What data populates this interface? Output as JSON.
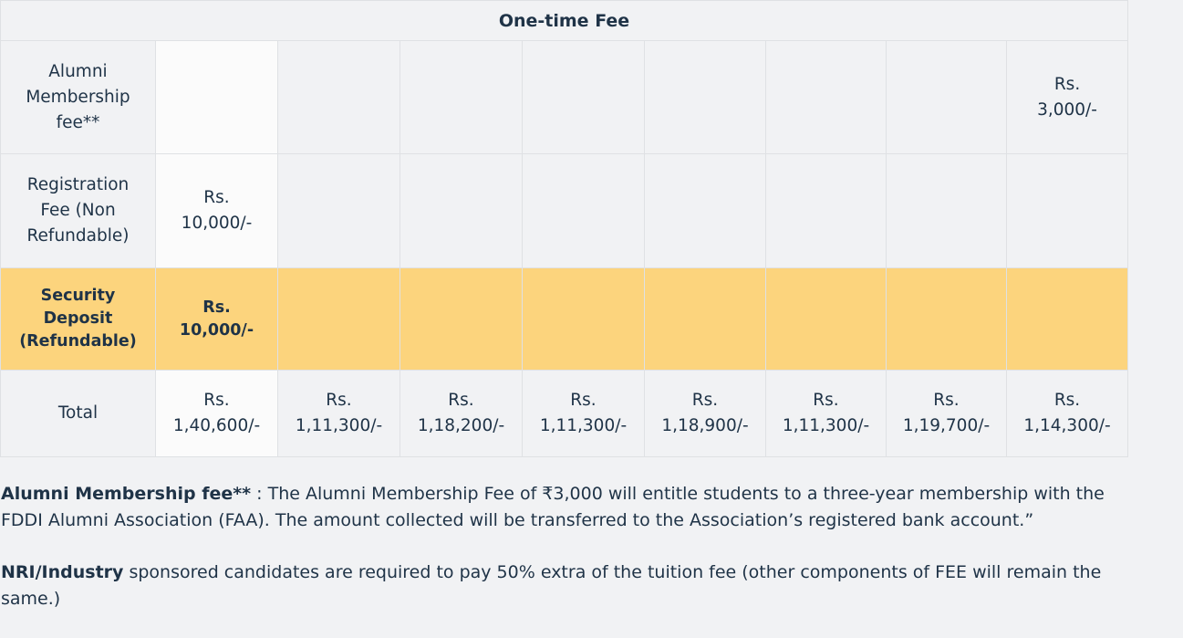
{
  "table": {
    "header": "One-time Fee",
    "rows": {
      "alumni": {
        "label": "Alumni\nMembership\nfee**",
        "cells": [
          "",
          "",
          "",
          "",
          "",
          "",
          "",
          "Rs.\n3,000/-"
        ]
      },
      "registration": {
        "label": "Registration\nFee (Non\nRefundable)",
        "cells": [
          "Rs.\n10,000/-",
          "",
          "",
          "",
          "",
          "",
          "",
          ""
        ]
      },
      "security": {
        "label": "Security\nDeposit\n(Refundable)",
        "cells": [
          "Rs.\n10,000/-",
          "",
          "",
          "",
          "",
          "",
          "",
          ""
        ]
      },
      "total": {
        "label": "Total",
        "cells": [
          "Rs.\n1,40,600/-",
          "Rs.\n1,11,300/-",
          "Rs.\n1,18,200/-",
          "Rs.\n1,11,300/-",
          "Rs.\n1,18,900/-",
          "Rs.\n1,11,300/-",
          "Rs.\n1,19,700/-",
          "Rs.\n1,14,300/-"
        ]
      }
    },
    "highlight_color": "#fcd47d"
  },
  "notes": {
    "alumni_bold": "Alumni Membership fee**",
    "alumni_text": " : The Alumni Membership Fee of ₹3,000 will entitle students to a three-year membership with the FDDI Alumni Association (FAA). The amount collected will be transferred to the Association’s registered bank account.”",
    "nri_bold": "NRI/Industry",
    "nri_text": " sponsored candidates are required to pay 50% extra of the tuition fee (other components of FEE will remain the same.)"
  }
}
